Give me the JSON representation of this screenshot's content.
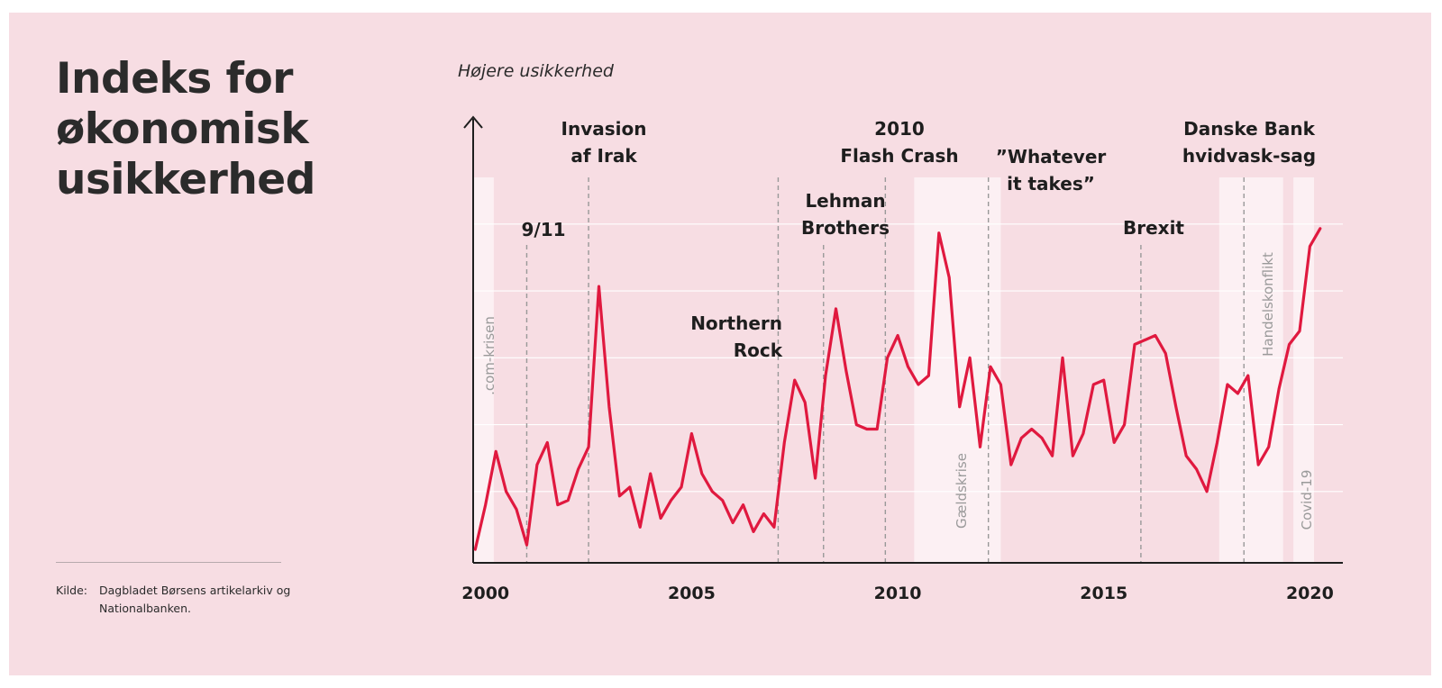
{
  "title": "Indeks for\nøkonomisk\nusikkerhed",
  "source": {
    "label": "Kilde:",
    "text": "Dagbladet Børsens artikelarkiv og Nationalbanken."
  },
  "colors": {
    "background": "#f7dde3",
    "line": "#e0193f",
    "band": "#fcf0f3",
    "grid": "#ffffff",
    "text": "#1e1e1e",
    "event_line": "#999999"
  },
  "chart_data": {
    "type": "line",
    "ylabel": "Højere usikkerhed",
    "y_ticks_shown": false,
    "grid": "horizontal",
    "xlim": [
      1999.7,
      2020.8
    ],
    "ylim": [
      0,
      100
    ],
    "x_ticks": [
      2000,
      2005,
      2010,
      2015,
      2020
    ],
    "series": [
      {
        "x": [
          1999.75,
          2000.0,
          2000.25,
          2000.5,
          2000.75,
          2001.0,
          2001.25,
          2001.5,
          2001.75,
          2002.0,
          2002.25,
          2002.5,
          2002.75,
          2003.0,
          2003.25,
          2003.5,
          2003.75,
          2004.0,
          2004.25,
          2004.5,
          2004.75,
          2005.0,
          2005.25,
          2005.5,
          2005.75,
          2006.0,
          2006.25,
          2006.5,
          2006.75,
          2007.0,
          2007.25,
          2007.5,
          2007.75,
          2008.0,
          2008.25,
          2008.5,
          2008.75,
          2009.0,
          2009.25,
          2009.5,
          2009.75,
          2010.0,
          2010.25,
          2010.5,
          2010.75,
          2011.0,
          2011.25,
          2011.5,
          2011.75,
          2012.0,
          2012.25,
          2012.5,
          2012.75,
          2013.0,
          2013.25,
          2013.5,
          2013.75,
          2014.0,
          2014.25,
          2014.5,
          2014.75,
          2015.0,
          2015.25,
          2015.5,
          2015.75,
          2016.0,
          2016.25,
          2016.5,
          2016.75,
          2017.0,
          2017.25,
          2017.5,
          2017.75,
          2018.0,
          2018.25,
          2018.5,
          2018.75,
          2019.0,
          2019.25,
          2019.5,
          2019.75,
          2020.0,
          2020.25
        ],
        "y": [
          3,
          13,
          25,
          16,
          12,
          4,
          22,
          27,
          13,
          14,
          21,
          26,
          62,
          35,
          15,
          17,
          8,
          20,
          10,
          14,
          17,
          29,
          20,
          16,
          14,
          9,
          13,
          7,
          11,
          8,
          27,
          41,
          36,
          19,
          42,
          57,
          43,
          31,
          30,
          30,
          46,
          51,
          44,
          40,
          42,
          74,
          64,
          35,
          46,
          26,
          44,
          40,
          22,
          28,
          30,
          28,
          24,
          46,
          24,
          29,
          40,
          41,
          27,
          31,
          49,
          50,
          51,
          47,
          35,
          24,
          21,
          16,
          27,
          40,
          38,
          42,
          22,
          26,
          39,
          49,
          52,
          71,
          75
        ],
        "values_note": "unitless index; ylim chosen for relative scale"
      }
    ],
    "events": [
      {
        "name": "9/11",
        "x": 2001.0
      },
      {
        "name": "Invasion af Irak",
        "x": 2002.5
      },
      {
        "name": "Northern Rock",
        "x": 2007.1
      },
      {
        "name": "Lehman Brothers",
        "x": 2008.2
      },
      {
        "name": "2010 Flash Crash",
        "x": 2009.7
      },
      {
        "name": "”Whatever it takes”",
        "x": 2012.2
      },
      {
        "name": "Brexit",
        "x": 2015.9
      },
      {
        "name": "Danske Bank hvidvask-sag",
        "x": 2018.4
      }
    ],
    "bands": [
      {
        "name": ".com-krisen",
        "x0": 1999.7,
        "x1": 2000.2
      },
      {
        "name": "Gældskrise",
        "x0": 2010.4,
        "x1": 2012.5
      },
      {
        "name": "Handelskonflikt",
        "x0": 2017.8,
        "x1": 2019.35
      },
      {
        "name": "Covid-19",
        "x0": 2019.6,
        "x1": 2020.1
      }
    ]
  }
}
